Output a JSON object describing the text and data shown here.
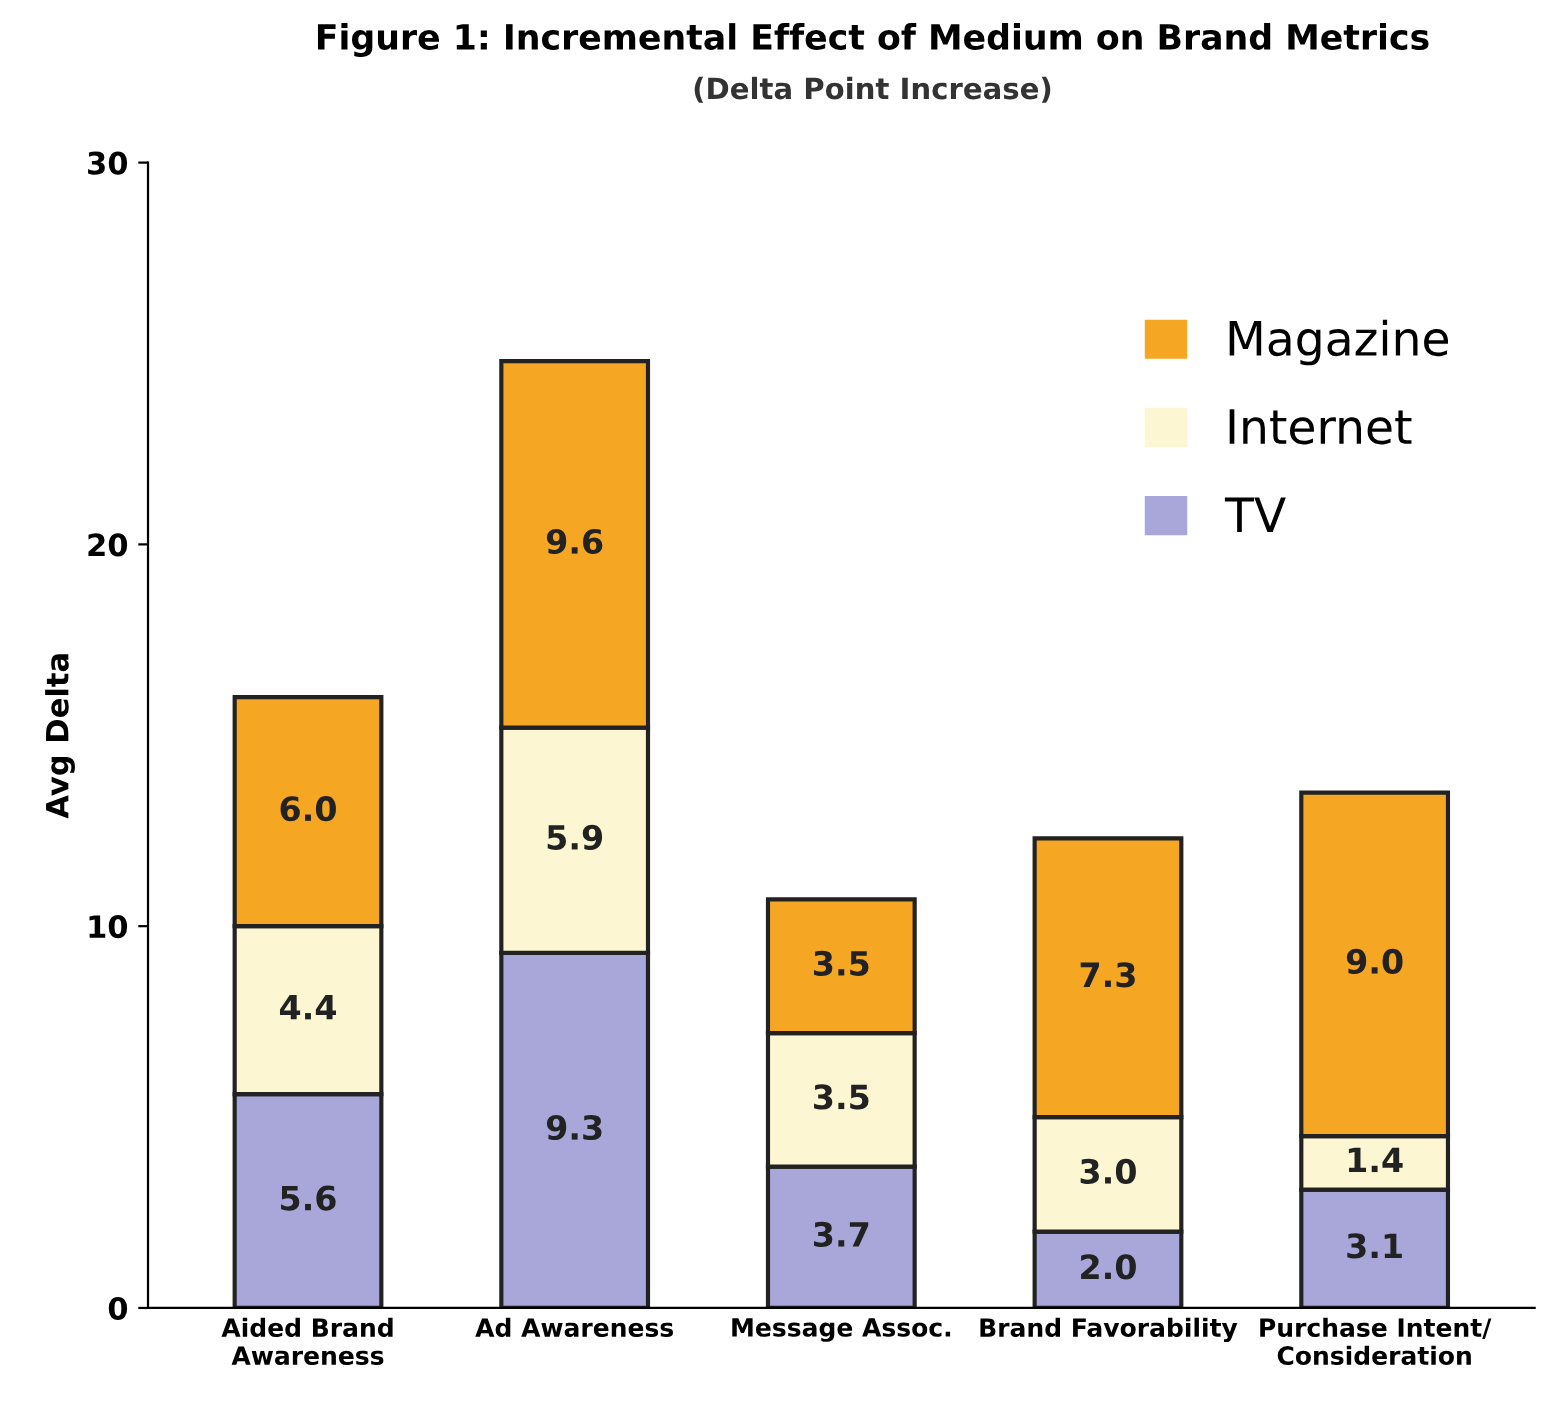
{
  "chart_data": {
    "type": "bar",
    "stacked": true,
    "title": "Figure 1: Incremental Effect of Medium on Brand Metrics",
    "subtitle": "(Delta Point Increase)",
    "ylabel": "Avg Delta",
    "categories": [
      "Aided Brand\nAwareness",
      "Ad Awareness",
      "Message Assoc.",
      "Brand Favorability",
      "Purchase Intent/\nConsideration"
    ],
    "series": [
      {
        "name": "TV",
        "color": "#a9a6d9",
        "values": [
          5.6,
          9.3,
          3.7,
          2.0,
          3.1
        ],
        "value_labels": [
          "5.6",
          "9.3",
          "3.7",
          "2.0",
          "3.1"
        ]
      },
      {
        "name": "Internet",
        "color": "#fcf7d2",
        "values": [
          4.4,
          5.9,
          3.5,
          3.0,
          1.4
        ],
        "value_labels": [
          "4.4",
          "5.9",
          "3.5",
          "3.0",
          "1.4"
        ]
      },
      {
        "name": "Magazine",
        "color": "#f5a623",
        "values": [
          6.0,
          9.6,
          3.5,
          7.3,
          9.0
        ],
        "value_labels": [
          "6.0",
          "9.6",
          "3.5",
          "7.3",
          "9.0"
        ]
      }
    ],
    "ylim": [
      0,
      30
    ],
    "yticks": [
      0,
      10,
      20,
      30
    ],
    "grid": false,
    "legend": "top right"
  }
}
